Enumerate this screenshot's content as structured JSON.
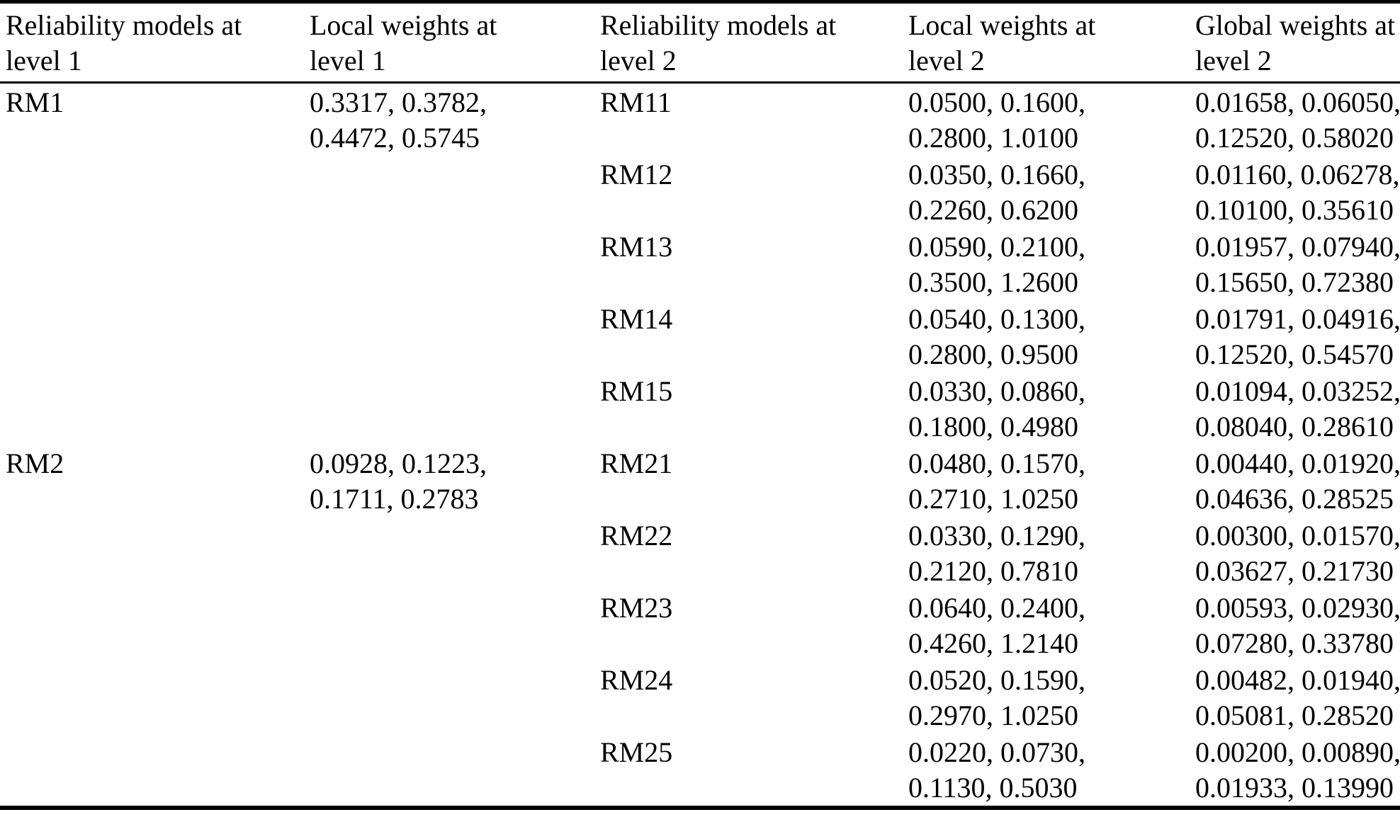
{
  "colors": {
    "text": "#000000",
    "background": "#ffffff",
    "rule": "#000000"
  },
  "table": {
    "headers": [
      "Reliability models at\nlevel 1",
      "Local weights at\nlevel 1",
      "Reliability models at\nlevel 2",
      "Local weights at\nlevel 2",
      "Global weights at\nlevel 2"
    ],
    "groups": [
      {
        "model": "RM1",
        "local_weights": "0.3317, 0.3782,\n0.4472, 0.5745",
        "children": [
          {
            "model": "RM11",
            "local": "0.0500, 0.1600,\n0.2800, 1.0100",
            "global": "0.01658, 0.06050,\n0.12520, 0.58020"
          },
          {
            "model": "RM12",
            "local": "0.0350, 0.1660,\n0.2260, 0.6200",
            "global": "0.01160, 0.06278,\n0.10100, 0.35610"
          },
          {
            "model": "RM13",
            "local": "0.0590, 0.2100,\n0.3500, 1.2600",
            "global": "0.01957, 0.07940,\n0.15650, 0.72380"
          },
          {
            "model": "RM14",
            "local": "0.0540, 0.1300,\n0.2800, 0.9500",
            "global": "0.01791, 0.04916,\n0.12520, 0.54570"
          },
          {
            "model": "RM15",
            "local": "0.0330, 0.0860,\n0.1800, 0.4980",
            "global": "0.01094, 0.03252,\n0.08040, 0.28610"
          }
        ]
      },
      {
        "model": "RM2",
        "local_weights": "0.0928, 0.1223,\n0.1711, 0.2783",
        "children": [
          {
            "model": "RM21",
            "local": "0.0480, 0.1570,\n0.2710, 1.0250",
            "global": "0.00440, 0.01920,\n0.04636, 0.28525"
          },
          {
            "model": "RM22",
            "local": "0.0330, 0.1290,\n0.2120, 0.7810",
            "global": "0.00300, 0.01570,\n0.03627, 0.21730"
          },
          {
            "model": "RM23",
            "local": "0.0640, 0.2400,\n0.4260, 1.2140",
            "global": "0.00593, 0.02930,\n0.07280, 0.33780"
          },
          {
            "model": "RM24",
            "local": "0.0520, 0.1590,\n0.2970, 1.0250",
            "global": "0.00482, 0.01940,\n0.05081, 0.28520"
          },
          {
            "model": "RM25",
            "local": "0.0220, 0.0730,\n0.1130, 0.5030",
            "global": "0.00200, 0.00890,\n0.01933, 0.13990"
          }
        ]
      }
    ]
  },
  "chart_data": {
    "type": "table",
    "columns": [
      "Reliability models at level 1",
      "Local weights at level 1",
      "Reliability models at level 2",
      "Local weights at level 2",
      "Global weights at level 2"
    ],
    "rows": [
      [
        "RM1",
        "0.3317, 0.3782, 0.4472, 0.5745",
        "RM11",
        "0.0500, 0.1600, 0.2800, 1.0100",
        "0.01658, 0.06050, 0.12520, 0.58020"
      ],
      [
        "",
        "",
        "RM12",
        "0.0350, 0.1660, 0.2260, 0.6200",
        "0.01160, 0.06278, 0.10100, 0.35610"
      ],
      [
        "",
        "",
        "RM13",
        "0.0590, 0.2100, 0.3500, 1.2600",
        "0.01957, 0.07940, 0.15650, 0.72380"
      ],
      [
        "",
        "",
        "RM14",
        "0.0540, 0.1300, 0.2800, 0.9500",
        "0.01791, 0.04916, 0.12520, 0.54570"
      ],
      [
        "",
        "",
        "RM15",
        "0.0330, 0.0860, 0.1800, 0.4980",
        "0.01094, 0.03252, 0.08040, 0.28610"
      ],
      [
        "RM2",
        "0.0928, 0.1223, 0.1711, 0.2783",
        "RM21",
        "0.0480, 0.1570, 0.2710, 1.0250",
        "0.00440, 0.01920, 0.04636, 0.28525"
      ],
      [
        "",
        "",
        "RM22",
        "0.0330, 0.1290, 0.2120, 0.7810",
        "0.00300, 0.01570, 0.03627, 0.21730"
      ],
      [
        "",
        "",
        "RM23",
        "0.0640, 0.2400, 0.4260, 1.2140",
        "0.00593, 0.02930, 0.07280, 0.33780"
      ],
      [
        "",
        "",
        "RM24",
        "0.0520, 0.1590, 0.2970, 1.0250",
        "0.00482, 0.01940, 0.05081, 0.28520"
      ],
      [
        "",
        "",
        "RM25",
        "0.0220, 0.0730, 0.1130, 0.5030",
        "0.00200, 0.00890, 0.01933, 0.13990"
      ]
    ]
  }
}
